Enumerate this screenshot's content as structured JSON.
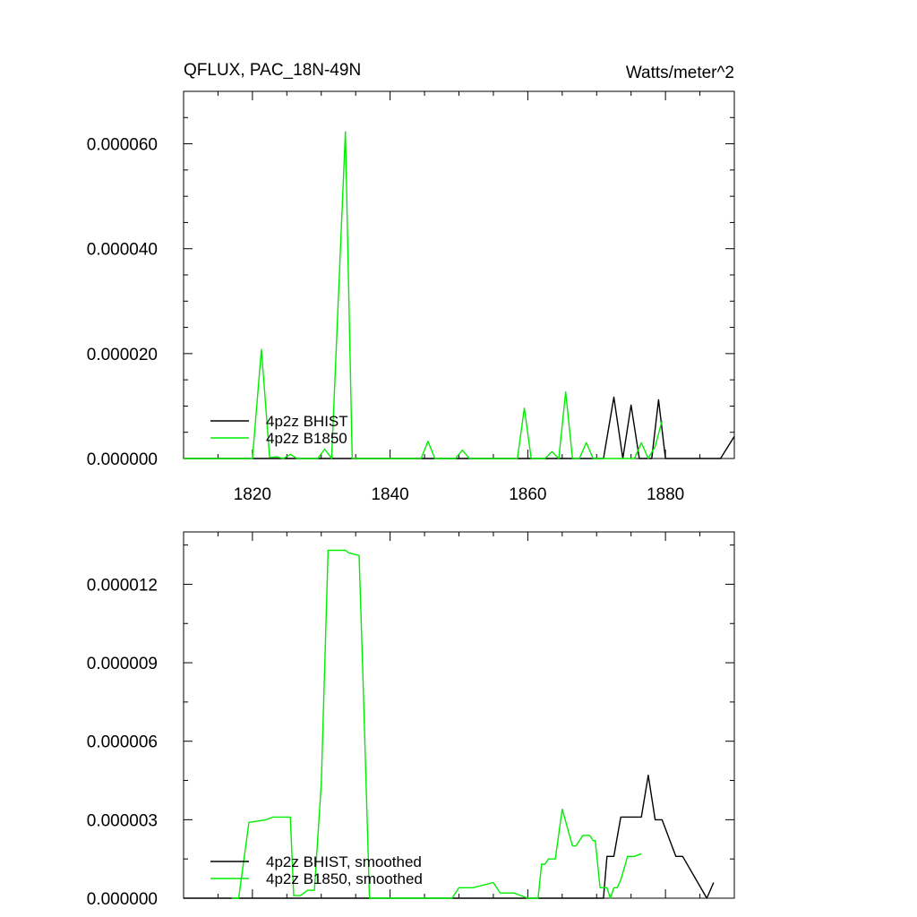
{
  "chart_data": [
    {
      "type": "line",
      "title": "QFLUX, PAC_18N-49N",
      "units": "Watts/meter^2",
      "xlim": [
        1810,
        1890
      ],
      "ylim": [
        0,
        7e-05
      ],
      "x_ticks": [
        1820,
        1840,
        1860,
        1880
      ],
      "x_tick_labels": [
        "1820",
        "1840",
        "1860",
        "1880"
      ],
      "y_ticks": [
        0,
        2e-05,
        4e-05,
        6e-05
      ],
      "y_tick_labels": [
        "0.000000",
        "0.000020",
        "0.000040",
        "0.000060"
      ],
      "legend_position": "bottom-left",
      "grid": false,
      "series": [
        {
          "name": "4p2z BHIST",
          "color": "#000000",
          "x": [
            1810,
            1871,
            1872.5,
            1873.8,
            1875,
            1876.2,
            1878,
            1879,
            1880,
            1888,
            1890
          ],
          "y": [
            0,
            0,
            1.17e-05,
            0,
            1.02e-05,
            0,
            0,
            1.12e-05,
            0,
            0,
            4.2e-06
          ]
        },
        {
          "name": "4p2z B1850",
          "color": "#00ee00",
          "x": [
            1810,
            1820,
            1821.3,
            1822.5,
            1823.5,
            1824.5,
            1825.5,
            1826.5,
            1829.5,
            1830.5,
            1831.5,
            1833.5,
            1834.5,
            1844.5,
            1845.5,
            1846.5,
            1849.5,
            1850.5,
            1851.5,
            1858.5,
            1859.5,
            1860.5,
            1862.5,
            1863.5,
            1864.5,
            1865.5,
            1866.5,
            1867.5,
            1868.5,
            1869.5,
            1875.5,
            1876.5,
            1877.5,
            1878.5,
            1879.5
          ],
          "y": [
            0,
            0,
            2.08e-05,
            2e-07,
            3e-07,
            0,
            8e-07,
            0,
            0,
            1.8e-06,
            0,
            6.23e-05,
            0,
            0,
            3.3e-06,
            0,
            0,
            1.6e-06,
            0,
            0,
            9.6e-06,
            0,
            0,
            1.3e-06,
            0,
            1.27e-05,
            0,
            0,
            3e-06,
            0,
            0,
            3e-06,
            0,
            2.3e-06,
            7.2e-06
          ]
        }
      ]
    },
    {
      "type": "line",
      "title": "",
      "xlim": [
        1810,
        1890
      ],
      "ylim": [
        0,
        1.4e-05
      ],
      "x_ticks": [
        1820,
        1840,
        1860,
        1880
      ],
      "y_ticks": [
        0,
        3e-06,
        6e-06,
        9e-06,
        1.2e-05
      ],
      "y_tick_labels": [
        "0.000000",
        "0.000003",
        "0.000006",
        "0.000009",
        "0.000012"
      ],
      "legend_position": "bottom-left",
      "grid": false,
      "series": [
        {
          "name": "4p2z BHIST, smoothed",
          "color": "#000000",
          "x": [
            1810,
            1871,
            1871.5,
            1872.5,
            1873.5,
            1876.5,
            1877.5,
            1878.5,
            1879.5,
            1881.5,
            1882.5,
            1886,
            1887
          ],
          "y": [
            0,
            0,
            1.6e-06,
            1.6e-06,
            3.1e-06,
            3.1e-06,
            4.7e-06,
            3e-06,
            3e-06,
            1.6e-06,
            1.6e-06,
            0,
            6e-07
          ]
        },
        {
          "name": "4p2z B1850, smoothed",
          "color": "#00ee00",
          "x": [
            1817,
            1818,
            1819.5,
            1822,
            1823,
            1824,
            1825.5,
            1826,
            1827,
            1828,
            1829,
            1830,
            1831,
            1833,
            1833.5,
            1834,
            1835.5,
            1836,
            1837,
            1849,
            1850,
            1852,
            1855,
            1856,
            1856.5,
            1858,
            1860,
            1861,
            1861.5,
            1862,
            1862.5,
            1863,
            1864,
            1865,
            1866.5,
            1867,
            1868,
            1869,
            1869.5,
            1869.8,
            1870.5,
            1871.5,
            1872,
            1872.5,
            1873,
            1873.5,
            1874.5,
            1875,
            1875.5,
            1876.5
          ],
          "y": [
            0,
            0,
            2.9e-06,
            3e-06,
            3.1e-06,
            3.1e-06,
            3.1e-06,
            1e-07,
            1e-07,
            3e-07,
            3e-07,
            4.4e-06,
            1.33e-05,
            1.33e-05,
            1.33e-05,
            1.32e-05,
            1.31e-05,
            8.9e-06,
            0,
            0,
            4e-07,
            4e-07,
            6e-07,
            2e-07,
            2e-07,
            2e-07,
            0,
            0,
            0,
            1.3e-06,
            1.3e-06,
            1.5e-06,
            1.5e-06,
            3.4e-06,
            2e-06,
            2e-06,
            2.4e-06,
            2.4e-06,
            2.2e-06,
            2.2e-06,
            4e-07,
            4e-07,
            0,
            4e-07,
            4e-07,
            7e-07,
            1.6e-06,
            1.6e-06,
            1.6e-06,
            1.7e-06
          ]
        }
      ]
    }
  ]
}
